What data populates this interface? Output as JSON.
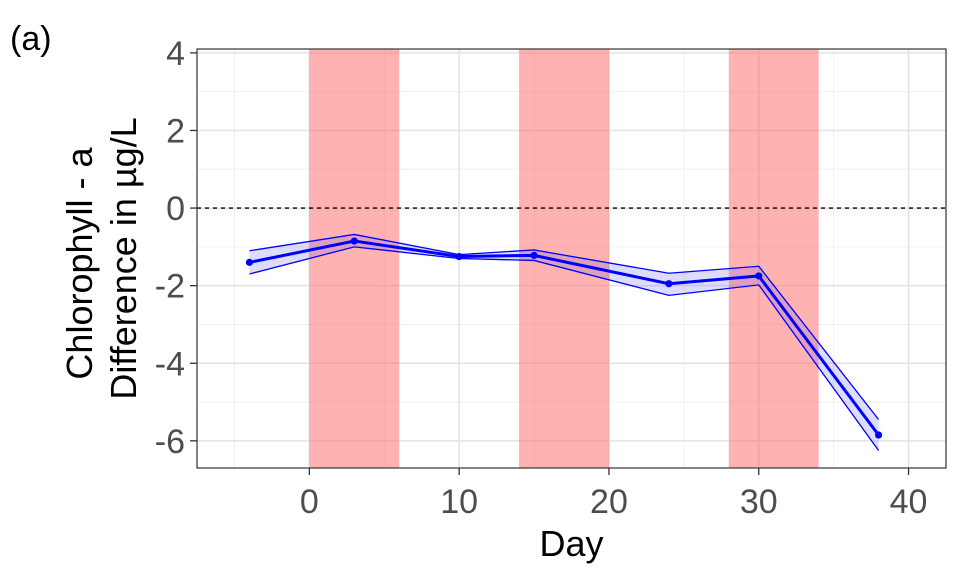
{
  "panel_label": "(a)",
  "chart_data": {
    "type": "line",
    "xlabel": "Day",
    "ylabel_lines": [
      "Chlorophyll - a",
      "Difference in µg/L"
    ],
    "xlim": [
      -7.5,
      42.5
    ],
    "ylim": [
      -6.7,
      4.1
    ],
    "x_ticks": [
      0,
      10,
      20,
      30,
      40
    ],
    "x_tick_labels": [
      "0",
      "10",
      "20",
      "30",
      "40"
    ],
    "y_ticks": [
      4,
      2,
      0,
      -2,
      -4,
      -6
    ],
    "y_tick_labels": [
      "4",
      "2",
      "0",
      "-2",
      "-4",
      "-6"
    ],
    "grid": true,
    "reference_line": {
      "y": 0,
      "style": "dashed",
      "color": "#000000"
    },
    "shaded_periods": [
      {
        "start": 0,
        "end": 6
      },
      {
        "start": 14,
        "end": 20
      },
      {
        "start": 28,
        "end": 34
      }
    ],
    "series": [
      {
        "color": "#0000ff",
        "x": [
          -4,
          3,
          10,
          15,
          24,
          30,
          38
        ],
        "y": [
          -1.4,
          -0.85,
          -1.25,
          -1.22,
          -1.95,
          -1.75,
          -5.85
        ],
        "lower": [
          -1.7,
          -1.0,
          -1.3,
          -1.35,
          -2.25,
          -1.98,
          -6.25
        ],
        "upper": [
          -1.1,
          -0.68,
          -1.2,
          -1.08,
          -1.68,
          -1.5,
          -5.45
        ]
      }
    ],
    "colors": {
      "shade": "#ff6666",
      "band": "#6666ee",
      "grid_major": "#e3e3e3",
      "grid_minor": "#f0f0f0"
    }
  }
}
